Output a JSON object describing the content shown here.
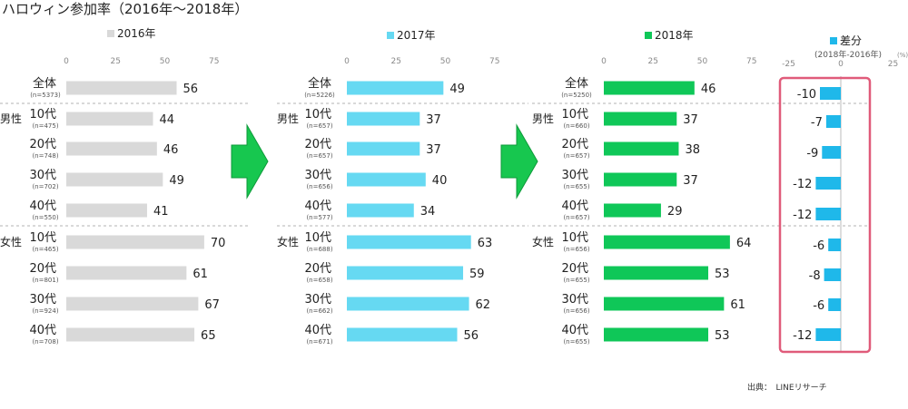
{
  "title": "ハロウィン参加率（2016年～2018年）",
  "source_label": "出典：　LINEリサーチ",
  "groups": {
    "male": "男性",
    "female": "女性"
  },
  "colors": {
    "y2016": "#d9d9d9",
    "y2017": "#66d9f2",
    "y2018": "#0fc758",
    "diff": "#1fb8ea",
    "highlight": "#e05b7a",
    "arrow": "#17c74f",
    "arrow_stroke": "#0e9a3a"
  },
  "chart_data": [
    {
      "type": "bar",
      "title": "2016年",
      "xlim": [
        0,
        75
      ],
      "ticks": [
        "0",
        "25",
        "50",
        "75"
      ],
      "categories": [
        "全体",
        "10代",
        "20代",
        "30代",
        "40代",
        "10代",
        "20代",
        "30代",
        "40代"
      ],
      "n_labels": [
        "(n=5373)",
        "(n=475)",
        "(n=748)",
        "(n=702)",
        "(n=550)",
        "(n=465)",
        "(n=801)",
        "(n=924)",
        "(n=708)"
      ],
      "values": [
        56,
        44,
        46,
        49,
        41,
        70,
        61,
        67,
        65
      ]
    },
    {
      "type": "bar",
      "title": "2017年",
      "xlim": [
        0,
        75
      ],
      "ticks": [
        "0",
        "25",
        "50",
        "75"
      ],
      "categories": [
        "全体",
        "10代",
        "20代",
        "30代",
        "40代",
        "10代",
        "20代",
        "30代",
        "40代"
      ],
      "n_labels": [
        "(n=5226)",
        "(n=657)",
        "(n=657)",
        "(n=656)",
        "(n=577)",
        "(n=688)",
        "(n=658)",
        "(n=662)",
        "(n=671)"
      ],
      "values": [
        49,
        37,
        37,
        40,
        34,
        63,
        59,
        62,
        56
      ]
    },
    {
      "type": "bar",
      "title": "2018年",
      "xlim": [
        0,
        75
      ],
      "ticks": [
        "0",
        "25",
        "50",
        "75"
      ],
      "categories": [
        "全体",
        "10代",
        "20代",
        "30代",
        "40代",
        "10代",
        "20代",
        "30代",
        "40代"
      ],
      "n_labels": [
        "(n=5250)",
        "(n=660)",
        "(n=657)",
        "(n=655)",
        "(n=657)",
        "(n=656)",
        "(n=655)",
        "(n=656)",
        "(n=655)"
      ],
      "values": [
        46,
        37,
        38,
        37,
        29,
        64,
        53,
        61,
        53
      ]
    },
    {
      "type": "bar",
      "title": "差分",
      "subtitle": "(2018年-2016年)",
      "unit": "(%)",
      "xlim": [
        -25,
        25
      ],
      "ticks": [
        "-25",
        "0",
        "25"
      ],
      "categories": [
        "全体",
        "10代",
        "20代",
        "30代",
        "40代",
        "10代",
        "20代",
        "30代",
        "40代"
      ],
      "values": [
        -10,
        -7,
        -9,
        -12,
        -12,
        -6,
        -8,
        -6,
        -12
      ]
    }
  ]
}
